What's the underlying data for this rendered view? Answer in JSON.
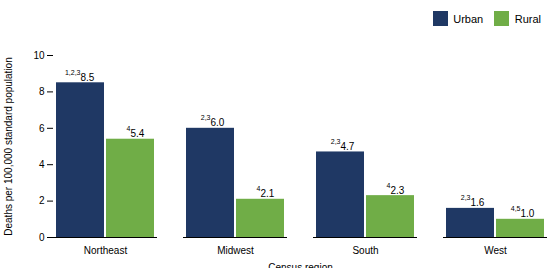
{
  "chart_data": {
    "type": "bar",
    "categories": [
      "Northeast",
      "Midwest",
      "South",
      "West"
    ],
    "series": [
      {
        "name": "Urban",
        "color": "#1f3864",
        "values": [
          8.5,
          6.0,
          4.7,
          1.6
        ],
        "value_labels": [
          "8.5",
          "6.0",
          "4.7",
          "1.6"
        ],
        "superscripts": [
          "1,2,3",
          "2,3",
          "2,3",
          "2,3"
        ]
      },
      {
        "name": "Rural",
        "color": "#70ad47",
        "values": [
          5.4,
          2.1,
          2.3,
          1.0
        ],
        "value_labels": [
          "5.4",
          "2.1",
          "2.3",
          "1.0"
        ],
        "superscripts": [
          "4",
          "4",
          "4",
          "4,5"
        ]
      }
    ],
    "xlabel": "Census region",
    "ylabel": "Deaths per 100,000 standard population",
    "ylim": [
      0,
      10
    ],
    "yticks": [
      0,
      2,
      4,
      6,
      8,
      10
    ],
    "grid": false,
    "legend": "upper right",
    "data_labels": true
  }
}
